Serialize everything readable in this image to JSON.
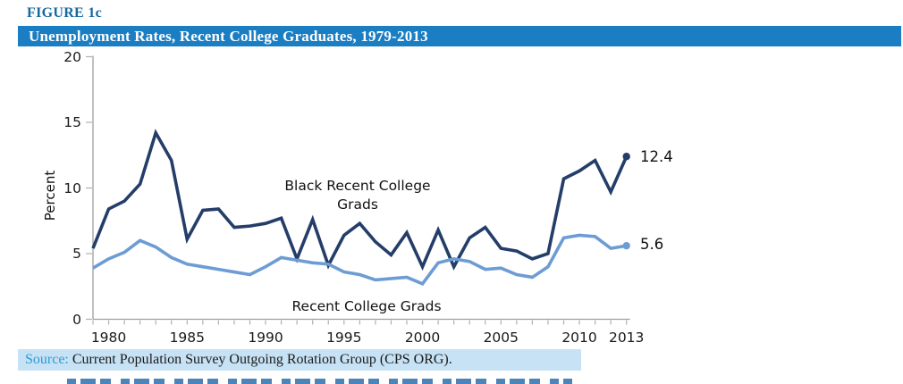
{
  "figure": {
    "label": "FIGURE 1c",
    "title": "Unemployment Rates, Recent College Graduates, 1979-2013"
  },
  "annotations": {
    "black_label": "Black Recent College Grads",
    "all_label": "Recent College Grads",
    "black_end_value": "12.4",
    "all_end_value": "5.6"
  },
  "source": {
    "prefix": "Source:",
    "text": " Current Population Survey Outgoing Rotation Group (CPS ORG)."
  },
  "colors": {
    "banner_bg": "#1b7ec2",
    "figure_label": "#16689f",
    "black_series": "#243d69",
    "all_series": "#6d9cd4",
    "source_bg": "#c6e2f4",
    "source_prefix": "#2f9bd4",
    "axis": "#9e9e9e",
    "tick": "#b0b0b0"
  },
  "chart_data": {
    "type": "line",
    "title": "Unemployment Rates, Recent College Graduates, 1979-2013",
    "xlabel": "",
    "ylabel": "Percent",
    "xlim": [
      1979,
      2013
    ],
    "ylim": [
      0,
      20
    ],
    "grid": false,
    "legend": "inline-annotations",
    "y_ticks": [
      0,
      5,
      10,
      15,
      20
    ],
    "x_tick_labels": [
      1980,
      1985,
      1990,
      1995,
      2000,
      2005,
      2010,
      2013
    ],
    "x": [
      1979,
      1980,
      1981,
      1982,
      1983,
      1984,
      1985,
      1986,
      1987,
      1988,
      1989,
      1990,
      1991,
      1992,
      1993,
      1994,
      1995,
      1996,
      1997,
      1998,
      1999,
      2000,
      2001,
      2002,
      2003,
      2004,
      2005,
      2006,
      2007,
      2008,
      2009,
      2010,
      2011,
      2012,
      2013
    ],
    "series": [
      {
        "name": "Black Recent College Grads",
        "color": "#243d69",
        "end_label": "12.4",
        "values": [
          5.4,
          8.4,
          9.0,
          10.3,
          14.2,
          12.1,
          6.1,
          8.3,
          8.4,
          7.0,
          7.1,
          7.3,
          7.7,
          4.6,
          7.6,
          4.1,
          6.4,
          7.3,
          5.9,
          4.9,
          6.6,
          4.0,
          6.8,
          4.0,
          6.2,
          7.0,
          5.4,
          5.2,
          4.6,
          5.0,
          10.7,
          11.3,
          12.1,
          9.7,
          12.4
        ]
      },
      {
        "name": "Recent College Grads",
        "color": "#6d9cd4",
        "end_label": "5.6",
        "values": [
          3.9,
          4.6,
          5.1,
          6.0,
          5.5,
          4.7,
          4.2,
          4.0,
          3.8,
          3.6,
          3.4,
          4.0,
          4.7,
          4.5,
          4.3,
          4.2,
          3.6,
          3.4,
          3.0,
          3.1,
          3.2,
          2.7,
          4.3,
          4.6,
          4.4,
          3.8,
          3.9,
          3.4,
          3.2,
          4.0,
          6.2,
          6.4,
          6.3,
          5.4,
          5.6
        ]
      }
    ]
  }
}
